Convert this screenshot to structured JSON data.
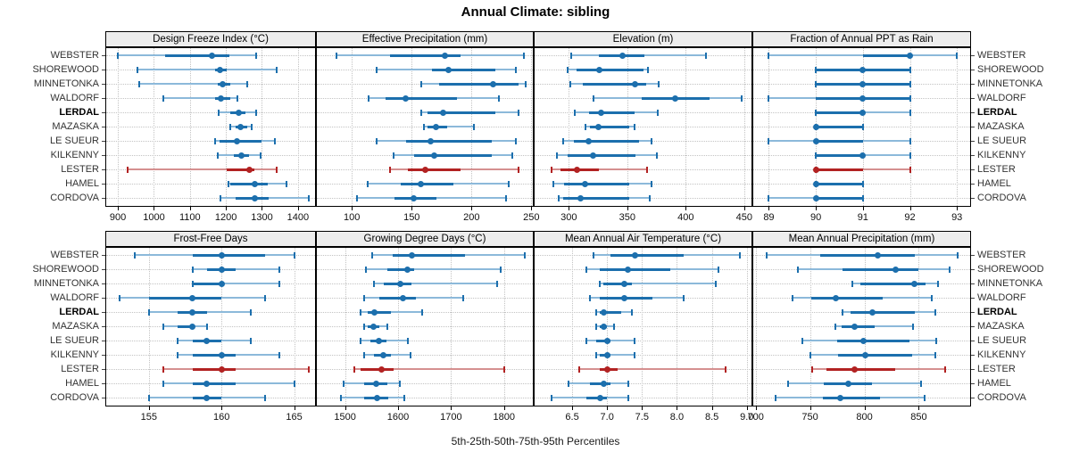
{
  "title": "Annual Climate: sibling",
  "caption": "5th-25th-50th-75th-95th Percentiles",
  "colors": {
    "blue": "#1c6fad",
    "blue_light": "#8cb9da",
    "red": "#b22222",
    "red_light": "#d59090",
    "grid": "#c3c3c3",
    "strip_bg": "#ededed",
    "border": "#000000"
  },
  "chart_data": {
    "type": "dotplot",
    "title": "Annual Climate: sibling",
    "xlabel": "5th-25th-50th-75th-95th Percentiles",
    "percentile_labels": [
      "5th",
      "25th",
      "50th",
      "75th",
      "95th"
    ],
    "legend_position": "none",
    "grid": "dotted",
    "sites": [
      "WEBSTER",
      "SHOREWOOD",
      "MINNETONKA",
      "WALDORF",
      "LERDAL",
      "MAZASKA",
      "LE SUEUR",
      "KILKENNY",
      "LESTER",
      "HAMEL",
      "CORDOVA"
    ],
    "bold_site": "LERDAL",
    "highlight_site": "LESTER",
    "panels": [
      {
        "title": "Design Freeze Index (°C)",
        "xlim": [
          865,
          1450
        ],
        "tick_values": [
          900,
          1000,
          1100,
          1200,
          1300,
          1400
        ],
        "tick_labels": [
          "900",
          "1000",
          "1100",
          "1200",
          "1300",
          "1400"
        ],
        "values": {
          "WEBSTER": [
            900,
            1030,
            1160,
            1210,
            1285
          ],
          "SHOREWOOD": [
            953,
            1170,
            1184,
            1203,
            1340
          ],
          "MINNETONKA": [
            959,
            1178,
            1190,
            1212,
            1259
          ],
          "WALDORF": [
            1025,
            1171,
            1186,
            1211,
            1233
          ],
          "LERDAL": [
            1179,
            1211,
            1235,
            1254,
            1285
          ],
          "MAZASKA": [
            1212,
            1226,
            1241,
            1258,
            1272
          ],
          "LE SUEUR": [
            1170,
            1182,
            1230,
            1298,
            1336
          ],
          "KILKENNY": [
            1178,
            1223,
            1242,
            1263,
            1297
          ],
          "LESTER": [
            927,
            1203,
            1265,
            1278,
            1340
          ],
          "HAMEL": [
            1207,
            1211,
            1280,
            1315,
            1369
          ],
          "CORDOVA": [
            1185,
            1228,
            1280,
            1319,
            1431
          ]
        }
      },
      {
        "title": "Effective Precipitation (mm)",
        "xlim": [
          70,
          252
        ],
        "tick_values": [
          100,
          150,
          200,
          250
        ],
        "tick_labels": [
          "100",
          "150",
          "200",
          "250"
        ],
        "values": {
          "WEBSTER": [
            87,
            132,
            178,
            191,
            244
          ],
          "SHOREWOOD": [
            121,
            167,
            181,
            220,
            237
          ],
          "MINNETONKA": [
            158,
            173,
            218,
            239,
            245
          ],
          "WALDORF": [
            114,
            128,
            145,
            188,
            223
          ],
          "LERDAL": [
            158,
            163,
            176,
            220,
            239
          ],
          "MAZASKA": [
            160,
            163,
            170,
            180,
            202
          ],
          "LE SUEUR": [
            121,
            145,
            166,
            217,
            237
          ],
          "KILKENNY": [
            135,
            152,
            169,
            217,
            234
          ],
          "LESTER": [
            132,
            147,
            161,
            191,
            239
          ],
          "HAMEL": [
            113,
            141,
            158,
            185,
            231
          ],
          "CORDOVA": [
            104,
            136,
            152,
            171,
            229
          ]
        }
      },
      {
        "title": "Elevation (m)",
        "xlim": [
          270,
          457
        ],
        "tick_values": [
          300,
          350,
          400,
          450
        ],
        "tick_labels": [
          "300",
          "350",
          "400",
          "450"
        ],
        "values": {
          "WEBSTER": [
            302,
            326,
            346,
            365,
            417
          ],
          "SHOREWOOD": [
            299,
            307,
            326,
            364,
            368
          ],
          "MINNETONKA": [
            301,
            312,
            357,
            366,
            377
          ],
          "WALDORF": [
            321,
            362,
            391,
            420,
            448
          ],
          "LERDAL": [
            305,
            317,
            328,
            356,
            376
          ],
          "MAZASKA": [
            314,
            318,
            325,
            352,
            356
          ],
          "LE SUEUR": [
            295,
            304,
            317,
            360,
            371
          ],
          "KILKENNY": [
            290,
            299,
            321,
            357,
            375
          ],
          "LESTER": [
            285,
            293,
            307,
            326,
            367
          ],
          "HAMEL": [
            287,
            296,
            314,
            352,
            371
          ],
          "CORDOVA": [
            291,
            295,
            310,
            352,
            369
          ]
        }
      },
      {
        "title": "Fraction of Annual PPT as Rain",
        "xlim": [
          88.65,
          93.3
        ],
        "tick_values": [
          89,
          90,
          91,
          92,
          93
        ],
        "tick_labels": [
          "89",
          "90",
          "91",
          "92",
          "93"
        ],
        "values": {
          "WEBSTER": [
            89,
            91,
            92,
            92,
            93
          ],
          "SHOREWOOD": [
            90,
            90,
            91,
            92,
            92
          ],
          "MINNETONKA": [
            90,
            90,
            91,
            92,
            92
          ],
          "WALDORF": [
            89,
            90,
            91,
            92,
            92
          ],
          "LERDAL": [
            90,
            90,
            91,
            91,
            92
          ],
          "MAZASKA": [
            90,
            90,
            90,
            91,
            91
          ],
          "LE SUEUR": [
            89,
            90,
            90,
            91,
            92
          ],
          "KILKENNY": [
            90,
            90,
            91,
            91,
            92
          ],
          "LESTER": [
            90,
            90,
            90,
            91,
            92
          ],
          "HAMEL": [
            90,
            90,
            90,
            91,
            91
          ],
          "CORDOVA": [
            89,
            90,
            90,
            91,
            91
          ]
        }
      },
      {
        "title": "Frost-Free Days",
        "xlim": [
          152,
          166.5
        ],
        "tick_values": [
          155,
          160,
          165
        ],
        "tick_labels": [
          "155",
          "160",
          "165"
        ],
        "values": {
          "WEBSTER": [
            154,
            158,
            160,
            163,
            165
          ],
          "SHOREWOOD": [
            158,
            159,
            160,
            161,
            164
          ],
          "MINNETONKA": [
            158,
            158,
            160,
            160,
            164
          ],
          "WALDORF": [
            153,
            155,
            158,
            160,
            163
          ],
          "LERDAL": [
            155,
            157,
            158,
            159,
            162
          ],
          "MAZASKA": [
            156,
            157,
            158,
            158,
            159
          ],
          "LE SUEUR": [
            157,
            158,
            159,
            160,
            162
          ],
          "KILKENNY": [
            157,
            158,
            160,
            161,
            164
          ],
          "LESTER": [
            156,
            158,
            160,
            161,
            166
          ],
          "HAMEL": [
            156,
            158,
            159,
            161,
            165
          ],
          "CORDOVA": [
            155,
            158,
            159,
            160,
            163
          ]
        }
      },
      {
        "title": "Growing Degree Days (°C)",
        "xlim": [
          1445,
          1856
        ],
        "tick_values": [
          1500,
          1600,
          1700,
          1800
        ],
        "tick_labels": [
          "1500",
          "1600",
          "1700",
          "1800"
        ],
        "values": {
          "WEBSTER": [
            1551,
            1590,
            1626,
            1726,
            1839
          ],
          "SHOREWOOD": [
            1540,
            1580,
            1617,
            1630,
            1793
          ],
          "MINNETONKA": [
            1554,
            1573,
            1604,
            1626,
            1787
          ],
          "WALDORF": [
            1536,
            1565,
            1609,
            1634,
            1723
          ],
          "LERDAL": [
            1530,
            1543,
            1555,
            1587,
            1646
          ],
          "MAZASKA": [
            1536,
            1543,
            1553,
            1565,
            1580
          ],
          "LE SUEUR": [
            1529,
            1548,
            1564,
            1578,
            1619
          ],
          "KILKENNY": [
            1536,
            1554,
            1572,
            1586,
            1624
          ],
          "LESTER": [
            1518,
            1530,
            1568,
            1591,
            1801
          ],
          "HAMEL": [
            1498,
            1536,
            1558,
            1579,
            1603
          ],
          "CORDOVA": [
            1492,
            1536,
            1561,
            1581,
            1611
          ]
        }
      },
      {
        "title": "Mean Annual Air Temperature (°C)",
        "xlim": [
          5.95,
          9.08
        ],
        "tick_values": [
          6.5,
          7.0,
          7.5,
          8.0,
          8.5,
          9.0
        ],
        "tick_labels": [
          "6.5",
          "7.0",
          "7.5",
          "8.0",
          "8.5",
          "9.0"
        ],
        "values": {
          "WEBSTER": [
            6.8,
            7.05,
            7.4,
            8.1,
            8.9
          ],
          "SHOREWOOD": [
            6.7,
            6.9,
            7.3,
            7.9,
            8.6
          ],
          "MINNETONKA": [
            6.9,
            6.95,
            7.25,
            7.35,
            8.55
          ],
          "WALDORF": [
            6.75,
            6.9,
            7.25,
            7.65,
            8.1
          ],
          "LERDAL": [
            6.85,
            6.9,
            6.95,
            7.2,
            7.35
          ],
          "MAZASKA": [
            6.85,
            6.9,
            6.95,
            7.0,
            7.1
          ],
          "LE SUEUR": [
            6.7,
            6.85,
            7.0,
            7.05,
            7.4
          ],
          "KILKENNY": [
            6.85,
            6.9,
            7.0,
            7.05,
            7.4
          ],
          "LESTER": [
            6.6,
            6.9,
            7.0,
            7.15,
            8.7
          ],
          "HAMEL": [
            6.45,
            6.75,
            6.95,
            7.05,
            7.3
          ],
          "CORDOVA": [
            6.2,
            6.7,
            6.9,
            7.0,
            7.3
          ]
        }
      },
      {
        "title": "Mean Annual Precipitation (mm)",
        "xlim": [
          697,
          898
        ],
        "tick_values": [
          700,
          750,
          800,
          850
        ],
        "tick_labels": [
          "700",
          "750",
          "800",
          "850"
        ],
        "values": {
          "WEBSTER": [
            710,
            759,
            812,
            846,
            886
          ],
          "SHOREWOOD": [
            739,
            780,
            829,
            850,
            878
          ],
          "MINNETONKA": [
            789,
            796,
            846,
            856,
            868
          ],
          "WALDORF": [
            734,
            751,
            774,
            817,
            862
          ],
          "LERDAL": [
            780,
            787,
            807,
            846,
            865
          ],
          "MAZASKA": [
            773,
            779,
            791,
            809,
            845
          ],
          "LE SUEUR": [
            743,
            775,
            799,
            841,
            866
          ],
          "KILKENNY": [
            750,
            776,
            801,
            844,
            865
          ],
          "LESTER": [
            752,
            765,
            791,
            828,
            874
          ],
          "HAMEL": [
            730,
            763,
            785,
            807,
            852
          ],
          "CORDOVA": [
            718,
            762,
            778,
            814,
            855
          ]
        }
      }
    ]
  }
}
